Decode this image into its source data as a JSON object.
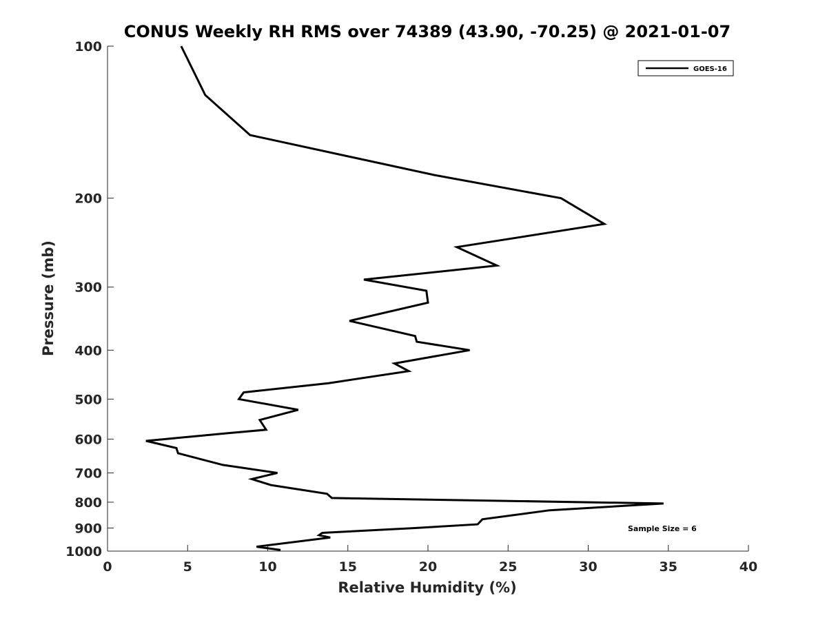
{
  "chart_data": {
    "type": "line",
    "title": "CONUS Weekly RH RMS over 74389 (43.90, -70.25) @ 2021-01-07",
    "xlabel": "Relative Humidity (%)",
    "ylabel": "Pressure (mb)",
    "xlim": [
      0,
      40
    ],
    "ylim": [
      100,
      1000
    ],
    "y_scale": "log",
    "y_reversed": true,
    "x_ticks": [
      0,
      5,
      10,
      15,
      20,
      25,
      30,
      35,
      40
    ],
    "y_ticks": [
      100,
      200,
      300,
      400,
      500,
      600,
      700,
      800,
      900,
      1000
    ],
    "grid": false,
    "legend_position": "top-right",
    "annotation": "Sample Size = 6",
    "series": [
      {
        "name": "GOES-16",
        "color": "#000000",
        "points": [
          [
            4.6,
            100
          ],
          [
            6.1,
            125
          ],
          [
            8.9,
            150
          ],
          [
            20.4,
            180
          ],
          [
            28.3,
            200
          ],
          [
            31.0,
            225
          ],
          [
            21.8,
            250
          ],
          [
            24.3,
            272
          ],
          [
            16.0,
            290
          ],
          [
            19.9,
            305
          ],
          [
            20.0,
            322
          ],
          [
            15.1,
            350
          ],
          [
            19.2,
            375
          ],
          [
            19.3,
            385
          ],
          [
            22.6,
            400
          ],
          [
            17.9,
            425
          ],
          [
            18.8,
            440
          ],
          [
            13.8,
            465
          ],
          [
            8.5,
            485
          ],
          [
            8.2,
            500
          ],
          [
            11.9,
            525
          ],
          [
            9.5,
            550
          ],
          [
            9.9,
            575
          ],
          [
            7.3,
            585
          ],
          [
            2.4,
            605
          ],
          [
            4.3,
            625
          ],
          [
            4.4,
            640
          ],
          [
            7.2,
            675
          ],
          [
            10.6,
            700
          ],
          [
            9.0,
            720
          ],
          [
            10.2,
            740
          ],
          [
            13.7,
            770
          ],
          [
            14.0,
            785
          ],
          [
            34.7,
            805
          ],
          [
            27.6,
            830
          ],
          [
            23.4,
            865
          ],
          [
            23.1,
            885
          ],
          [
            19.2,
            900
          ],
          [
            13.4,
            920
          ],
          [
            13.2,
            930
          ],
          [
            13.9,
            940
          ],
          [
            9.3,
            980
          ],
          [
            10.8,
            995
          ]
        ]
      }
    ]
  }
}
